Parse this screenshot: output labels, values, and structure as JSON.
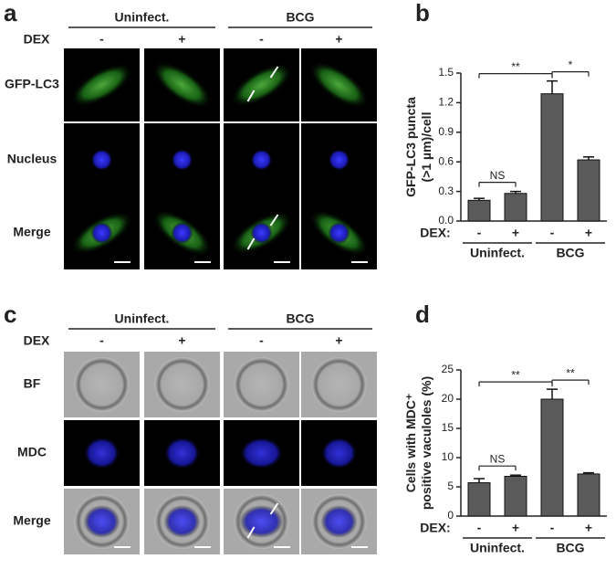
{
  "panels": [
    {
      "letter": "a",
      "groups": [
        "Uninfect.",
        "BCG"
      ],
      "treatment_label": "DEX",
      "treatments": [
        "-",
        "+",
        "-",
        "+"
      ],
      "rows": [
        "GFP-LC3",
        "Nucleus",
        "Merge"
      ]
    },
    {
      "letter": "c",
      "groups": [
        "Uninfect.",
        "BCG"
      ],
      "treatment_label": "DEX",
      "treatments": [
        "-",
        "+",
        "-",
        "+"
      ],
      "rows": [
        "BF",
        "MDC",
        "Merge"
      ]
    }
  ],
  "chart_data": [
    {
      "type": "bar",
      "letter": "b",
      "ylabel": [
        "GFP-LC3 puncta",
        "(>1 µm)/cell"
      ],
      "xlabel": "DEX:",
      "categories": [
        "-",
        "+",
        "-",
        "+"
      ],
      "groups": [
        "Uninfect.",
        "BCG"
      ],
      "values": [
        0.21,
        0.28,
        1.29,
        0.62
      ],
      "errors": [
        0.02,
        0.02,
        0.13,
        0.03
      ],
      "color": "#5a5a5a",
      "ylim": [
        0,
        1.5
      ],
      "yticks": [
        {
          "value": 0,
          "label": "0.0"
        },
        0.3,
        0.6,
        0.9,
        1.2,
        1.5
      ],
      "annotations": [
        {
          "text": "**",
          "between": [
            0,
            2
          ]
        },
        {
          "text": "*",
          "between": [
            2,
            3
          ]
        },
        {
          "text": "NS",
          "between": [
            0,
            1
          ]
        }
      ]
    },
    {
      "type": "bar",
      "letter": "d",
      "ylabel": [
        "Cells with MDC⁺",
        "positive vaculoles (%)"
      ],
      "xlabel": "DEX:",
      "categories": [
        "-",
        "+",
        "-",
        "+"
      ],
      "groups": [
        "Uninfect.",
        "BCG"
      ],
      "values": [
        5.7,
        6.8,
        20.0,
        7.2
      ],
      "errors": [
        0.7,
        0.2,
        1.7,
        0.2
      ],
      "color": "#5a5a5a",
      "ylim": [
        0,
        25
      ],
      "yticks": [
        0,
        5,
        10,
        15,
        20,
        25
      ],
      "annotations": [
        {
          "text": "**",
          "between": [
            0,
            2
          ]
        },
        {
          "text": "**",
          "between": [
            2,
            3
          ]
        },
        {
          "text": "NS",
          "between": [
            0,
            1
          ]
        }
      ]
    }
  ]
}
